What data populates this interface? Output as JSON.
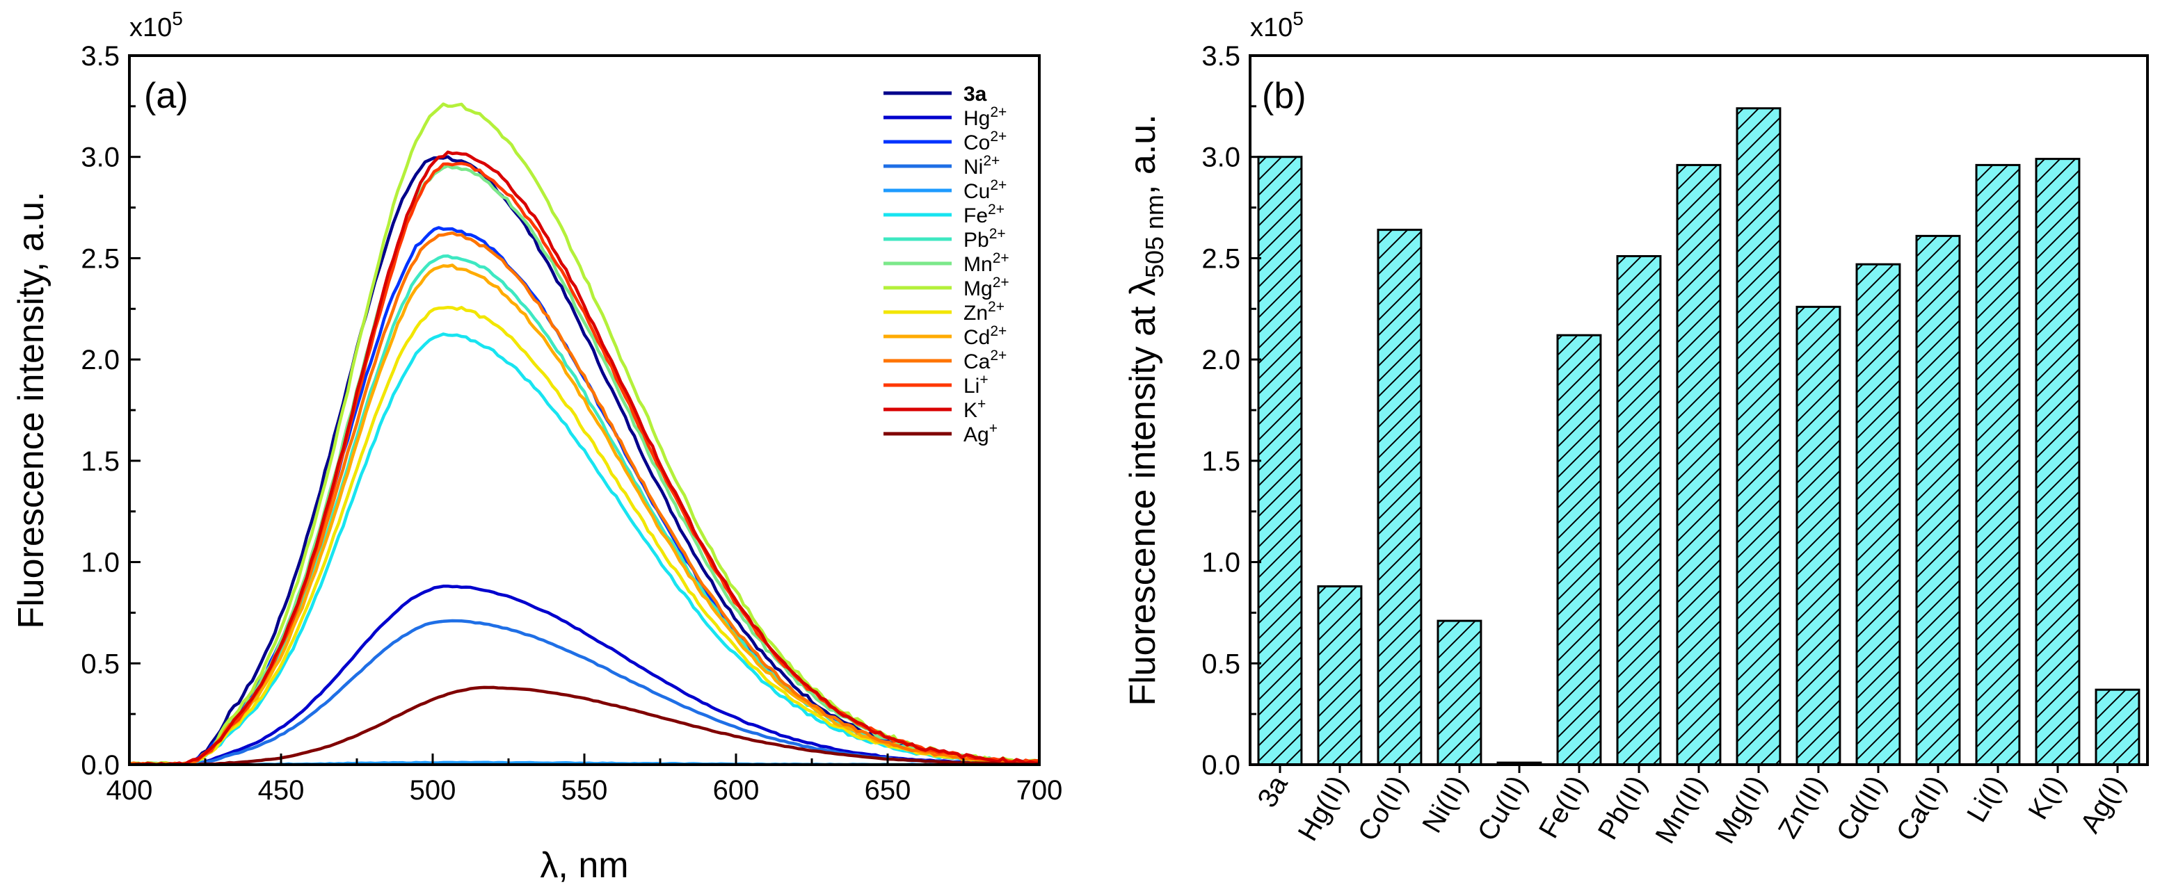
{
  "colors": {
    "axis": "#000000",
    "bar_fill": "#7ff5f5",
    "bar_edge": "#000000"
  },
  "chart_data": [
    {
      "type": "line",
      "panel_label": "(a)",
      "xlabel": "λ, nm",
      "ylabel": "Fluorescence intensity, a.u.",
      "multiplier_text": "x10",
      "multiplier_exponent": "5",
      "xlim": [
        400,
        700
      ],
      "ylim": [
        0,
        3.5
      ],
      "x_ticks": [
        "400",
        "450",
        "500",
        "550",
        "600",
        "650",
        "700"
      ],
      "y_ticks": [
        "0.0",
        "0.5",
        "1.0",
        "1.5",
        "2.0",
        "2.5",
        "3.0",
        "3.5"
      ],
      "legend_position": "top-right",
      "series": [
        {
          "name": "3a",
          "base": "3a",
          "sup": "",
          "bold": true,
          "peak": 3.0,
          "center": 502,
          "color": "#00008b"
        },
        {
          "name": "Hg2+",
          "base": "Hg",
          "sup": "2+",
          "bold": false,
          "peak": 0.88,
          "center": 505,
          "color": "#0000cd"
        },
        {
          "name": "Co2+",
          "base": "Co",
          "sup": "2+",
          "bold": false,
          "peak": 2.65,
          "center": 503,
          "color": "#0033ff"
        },
        {
          "name": "Ni2+",
          "base": "Ni",
          "sup": "2+",
          "bold": false,
          "peak": 0.71,
          "center": 505,
          "color": "#1f6fe6"
        },
        {
          "name": "Cu2+",
          "base": "Cu",
          "sup": "2+",
          "bold": false,
          "peak": 0.01,
          "center": 505,
          "color": "#1e9bff"
        },
        {
          "name": "Fe2+",
          "base": "Fe",
          "sup": "2+",
          "bold": false,
          "peak": 2.12,
          "center": 504,
          "color": "#18e4f0"
        },
        {
          "name": "Pb2+",
          "base": "Pb",
          "sup": "2+",
          "bold": false,
          "peak": 2.51,
          "center": 504,
          "color": "#3ee8c2"
        },
        {
          "name": "Mn2+",
          "base": "Mn",
          "sup": "2+",
          "bold": false,
          "peak": 2.95,
          "center": 505,
          "color": "#7be88a"
        },
        {
          "name": "Mg2+",
          "base": "Mg",
          "sup": "2+",
          "bold": false,
          "peak": 3.26,
          "center": 505,
          "color": "#b4f03a"
        },
        {
          "name": "Zn2+",
          "base": "Zn",
          "sup": "2+",
          "bold": false,
          "peak": 2.26,
          "center": 504,
          "color": "#f2e600"
        },
        {
          "name": "Cd2+",
          "base": "Cd",
          "sup": "2+",
          "bold": false,
          "peak": 2.46,
          "center": 504,
          "color": "#ffab00"
        },
        {
          "name": "Ca2+",
          "base": "Ca",
          "sup": "2+",
          "bold": false,
          "peak": 2.62,
          "center": 504,
          "color": "#ff7400"
        },
        {
          "name": "Li+",
          "base": "Li",
          "sup": "+",
          "bold": false,
          "peak": 2.97,
          "center": 506,
          "color": "#ff3800"
        },
        {
          "name": "K+",
          "base": "K",
          "sup": "+",
          "bold": false,
          "peak": 3.02,
          "center": 506,
          "color": "#d90000"
        },
        {
          "name": "Ag+",
          "base": "Ag",
          "sup": "+",
          "bold": false,
          "peak": 0.38,
          "center": 518,
          "color": "#800000"
        }
      ]
    },
    {
      "type": "bar",
      "panel_label": "(b)",
      "ylabel_prefix": "Fluorescence intensity at λ",
      "ylabel_subscript": "505 nm",
      "ylabel_suffix": ", a.u.",
      "multiplier_text": "x10",
      "multiplier_exponent": "5",
      "ylim": [
        0,
        3.5
      ],
      "y_ticks": [
        "0.0",
        "0.5",
        "1.0",
        "1.5",
        "2.0",
        "2.5",
        "3.0",
        "3.5"
      ],
      "categories": [
        "3a",
        "Hg(II)",
        "Co(II)",
        "Ni(II)",
        "Cu(II)",
        "Fe(II)",
        "Pb(II)",
        "Mn(II)",
        "Mg(II)",
        "Zn(II)",
        "Cd(II)",
        "Ca(II)",
        "Li(I)",
        "K(I)",
        "Ag(I)"
      ],
      "values": [
        3.0,
        0.88,
        2.64,
        0.71,
        0.01,
        2.12,
        2.51,
        2.96,
        3.24,
        2.26,
        2.47,
        2.61,
        2.96,
        2.99,
        0.37
      ]
    }
  ]
}
